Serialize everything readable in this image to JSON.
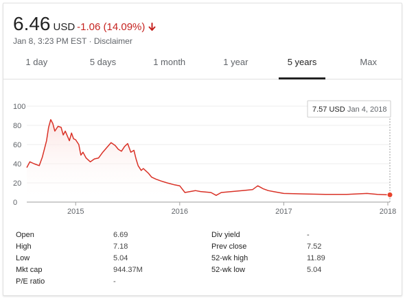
{
  "quote": {
    "price": "6.46",
    "currency": "USD",
    "change": "-1.06 (14.09%)",
    "timestamp": "Jan 8, 3:23 PM EST",
    "separator": " · ",
    "disclaimer": "Disclaimer",
    "change_color": "#c5221f"
  },
  "tabs": [
    {
      "label": "1 day"
    },
    {
      "label": "5 days"
    },
    {
      "label": "1 month"
    },
    {
      "label": "1 year"
    },
    {
      "label": "5 years",
      "active": true
    },
    {
      "label": "Max"
    }
  ],
  "tooltip": {
    "value": "7.57 USD",
    "date": "Jan 4, 2018"
  },
  "chart_data": {
    "type": "area",
    "line_color": "#d93025",
    "fill_color": "#fbe3e1",
    "ylim": [
      0,
      100
    ],
    "yticks": [
      "0",
      "20",
      "40",
      "60",
      "80",
      "100"
    ],
    "grid": true,
    "xlim": [
      2014.53,
      2018.02
    ],
    "xticks": [
      {
        "label": "2015",
        "x": 2015
      },
      {
        "label": "2016",
        "x": 2016
      },
      {
        "label": "2017",
        "x": 2017
      },
      {
        "label": "2018",
        "x": 2018
      }
    ],
    "x": [
      2014.53,
      2014.56,
      2014.6,
      2014.65,
      2014.68,
      2014.72,
      2014.74,
      2014.76,
      2014.78,
      2014.8,
      2014.83,
      2014.86,
      2014.88,
      2014.9,
      2014.94,
      2014.96,
      2014.98,
      2015.0,
      2015.03,
      2015.05,
      2015.07,
      2015.1,
      2015.14,
      2015.18,
      2015.22,
      2015.26,
      2015.3,
      2015.34,
      2015.38,
      2015.41,
      2015.44,
      2015.47,
      2015.5,
      2015.53,
      2015.56,
      2015.58,
      2015.6,
      2015.63,
      2015.65,
      2015.67,
      2015.7,
      2015.73,
      2015.77,
      2015.82,
      2015.88,
      2015.95,
      2016.0,
      2016.05,
      2016.1,
      2016.15,
      2016.2,
      2016.3,
      2016.35,
      2016.4,
      2016.5,
      2016.6,
      2016.7,
      2016.75,
      2016.8,
      2016.85,
      2016.9,
      2017.0,
      2017.2,
      2017.4,
      2017.6,
      2017.8,
      2017.9,
      2018.0,
      2018.02
    ],
    "values": [
      36,
      42,
      40,
      38,
      47,
      64,
      78,
      86,
      82,
      74,
      79,
      78,
      70,
      74,
      64,
      72,
      66,
      65,
      60,
      49,
      52,
      46,
      42,
      45,
      46,
      52,
      57,
      62,
      59,
      55,
      53,
      58,
      61,
      52,
      54,
      45,
      38,
      33,
      35,
      33,
      30,
      26,
      24,
      22,
      20,
      18,
      17,
      10,
      11,
      12,
      11,
      10,
      7,
      10,
      11,
      12,
      13,
      17,
      14,
      12,
      11,
      9,
      8.5,
      8,
      8,
      9,
      8,
      7.6,
      7.57
    ]
  },
  "stats": {
    "left": [
      {
        "label": "Open",
        "value": "6.69"
      },
      {
        "label": "High",
        "value": "7.18"
      },
      {
        "label": "Low",
        "value": "5.04"
      },
      {
        "label": "Mkt cap",
        "value": "944.37M"
      },
      {
        "label": "P/E ratio",
        "value": "-"
      }
    ],
    "right": [
      {
        "label": "Div yield",
        "value": "-"
      },
      {
        "label": "Prev close",
        "value": "7.52"
      },
      {
        "label": "52-wk high",
        "value": "11.89"
      },
      {
        "label": "52-wk low",
        "value": "5.04"
      }
    ]
  }
}
